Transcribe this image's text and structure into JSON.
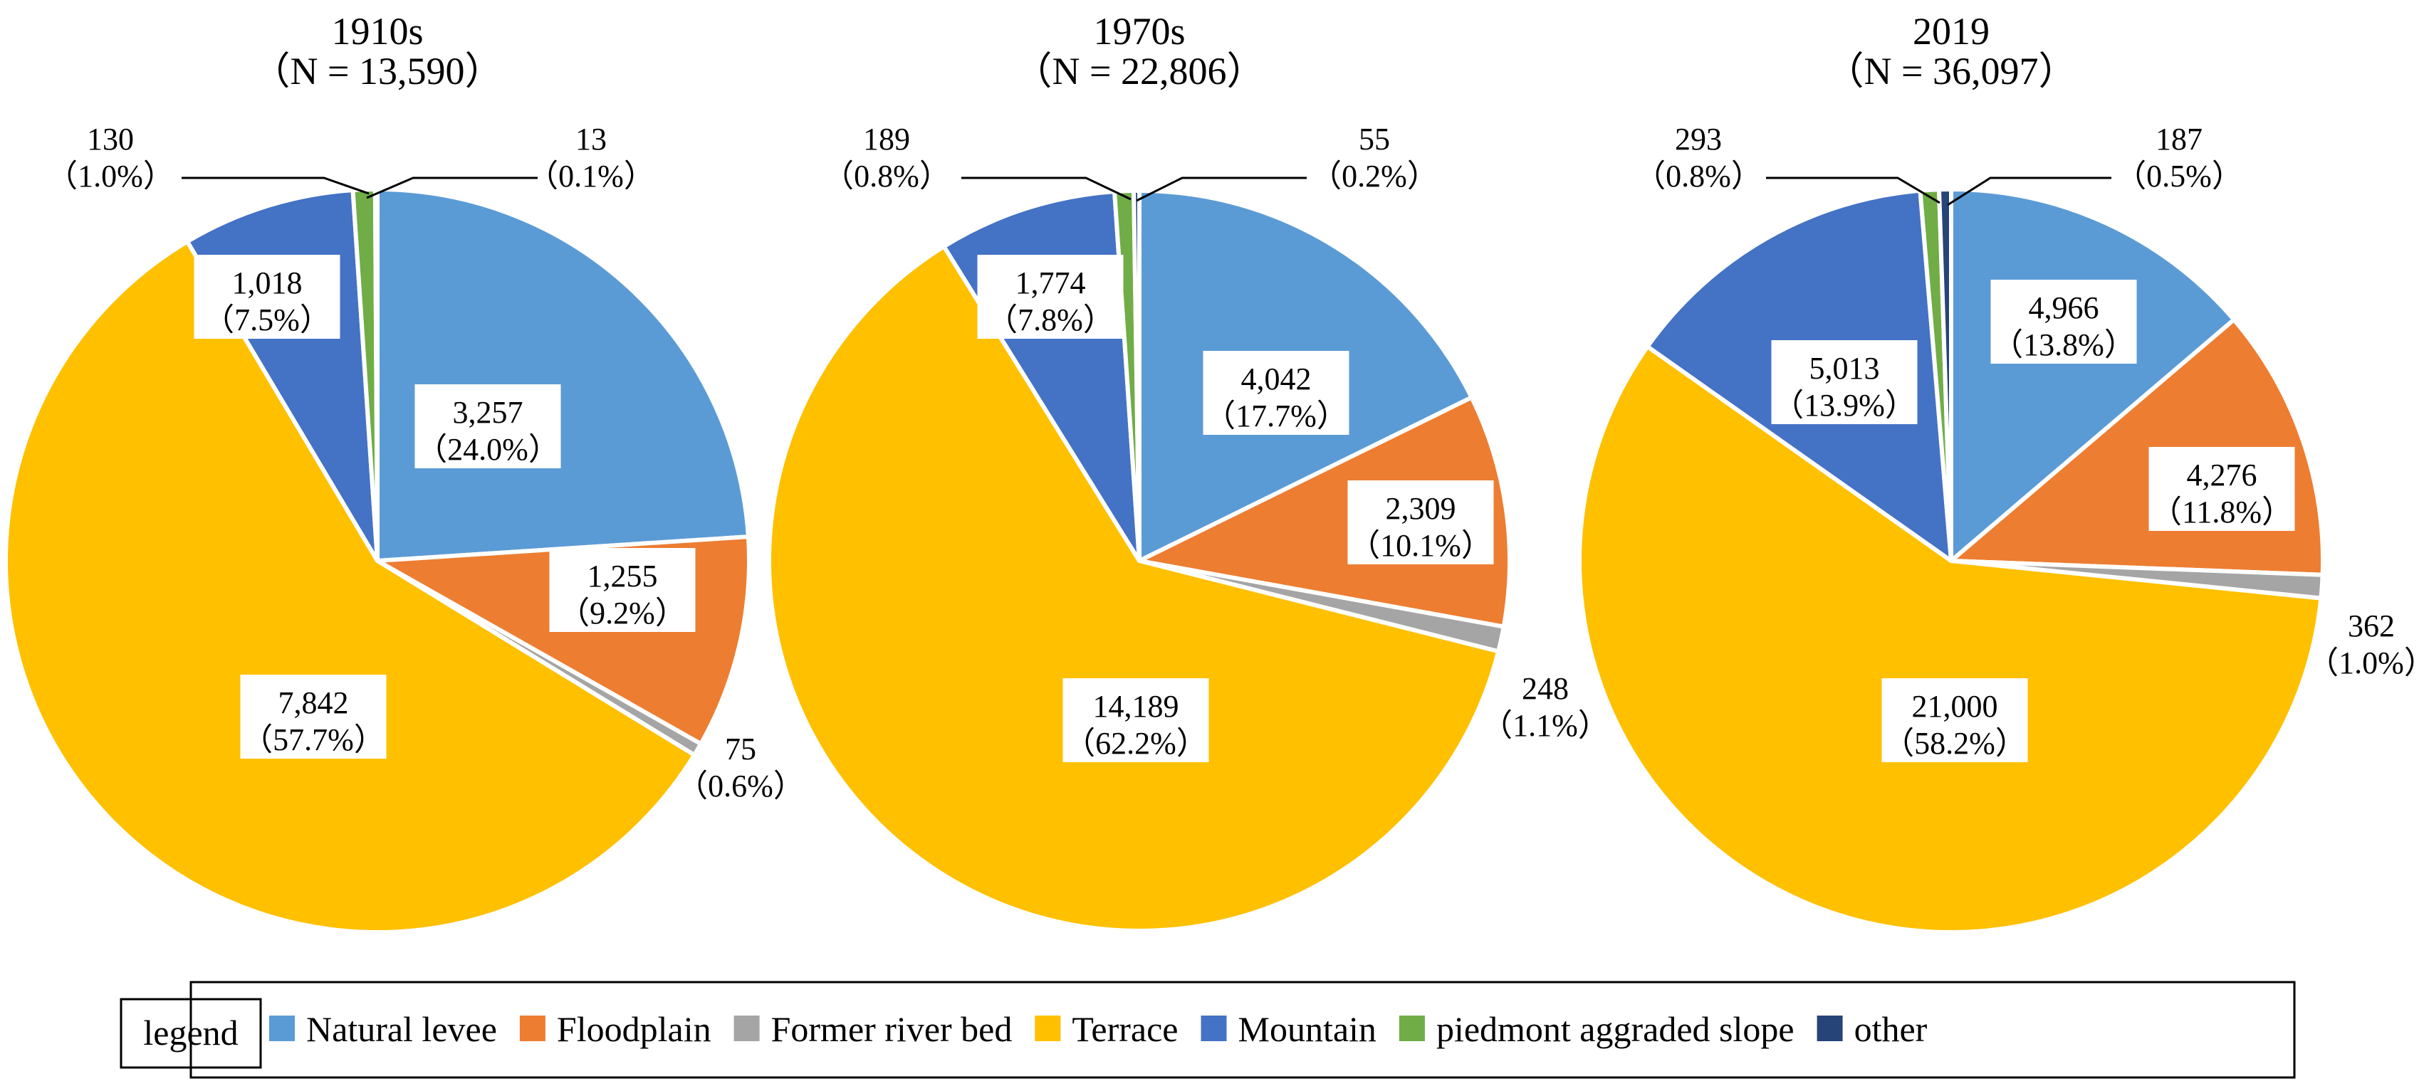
{
  "colors": {
    "natural_levee": "#5B9BD5",
    "floodplain": "#ED7D31",
    "former_river_bed": "#A5A5A5",
    "terrace": "#FFC000",
    "mountain": "#4472C4",
    "piedmont": "#70AD47",
    "other": "#264478"
  },
  "chart_data": [
    {
      "type": "pie",
      "title": "1910s",
      "subtitle": "（N = 13,590）",
      "slices": [
        {
          "category": "Natural levee",
          "value": 3257,
          "count": "3,257",
          "percent": "（24.0%）"
        },
        {
          "category": "Floodplain",
          "value": 1255,
          "count": "1,255",
          "percent": "（9.2%）"
        },
        {
          "category": "Former river bed",
          "value": 75,
          "count": "75",
          "percent": "（0.6%）"
        },
        {
          "category": "Terrace",
          "value": 7842,
          "count": "7,842",
          "percent": "（57.7%）"
        },
        {
          "category": "Mountain",
          "value": 1018,
          "count": "1,018",
          "percent": "（7.5%）"
        },
        {
          "category": "piedmont aggraded slope",
          "value": 130,
          "count": "130",
          "percent": "（1.0%）"
        },
        {
          "category": "other",
          "value": 13,
          "count": "13",
          "percent": "（0.1%）"
        }
      ]
    },
    {
      "type": "pie",
      "title": "1970s",
      "subtitle": "（N = 22,806）",
      "slices": [
        {
          "category": "Natural levee",
          "value": 4042,
          "count": "4,042",
          "percent": "（17.7%）"
        },
        {
          "category": "Floodplain",
          "value": 2309,
          "count": "2,309",
          "percent": "（10.1%）"
        },
        {
          "category": "Former river bed",
          "value": 248,
          "count": "248",
          "percent": "（1.1%）"
        },
        {
          "category": "Terrace",
          "value": 14189,
          "count": "14,189",
          "percent": "（62.2%）"
        },
        {
          "category": "Mountain",
          "value": 1774,
          "count": "1,774",
          "percent": "（7.8%）"
        },
        {
          "category": "piedmont aggraded slope",
          "value": 189,
          "count": "189",
          "percent": "（0.8%）"
        },
        {
          "category": "other",
          "value": 55,
          "count": "55",
          "percent": "（0.2%）"
        }
      ]
    },
    {
      "type": "pie",
      "title": "2019",
      "subtitle": "（N = 36,097）",
      "slices": [
        {
          "category": "Natural levee",
          "value": 4966,
          "count": "4,966",
          "percent": "（13.8%）"
        },
        {
          "category": "Floodplain",
          "value": 4276,
          "count": "4,276",
          "percent": "（11.8%）"
        },
        {
          "category": "Former river bed",
          "value": 362,
          "count": "362",
          "percent": "（1.0%）"
        },
        {
          "category": "Terrace",
          "value": 21000,
          "count": "21,000",
          "percent": "（58.2%）"
        },
        {
          "category": "Mountain",
          "value": 5013,
          "count": "5,013",
          "percent": "（13.9%）"
        },
        {
          "category": "piedmont aggraded slope",
          "value": 293,
          "count": "293",
          "percent": "（0.8%）"
        },
        {
          "category": "other",
          "value": 187,
          "count": "187",
          "percent": "（0.5%）"
        }
      ]
    }
  ],
  "legend": {
    "label": "legend",
    "items": [
      {
        "name": "Natural levee",
        "color_key": "natural_levee"
      },
      {
        "name": "Floodplain",
        "color_key": "floodplain"
      },
      {
        "name": "Former river bed",
        "color_key": "former_river_bed"
      },
      {
        "name": "Terrace",
        "color_key": "terrace"
      },
      {
        "name": "Mountain",
        "color_key": "mountain"
      },
      {
        "name": "piedmont aggraded slope",
        "color_key": "piedmont"
      },
      {
        "name": "other",
        "color_key": "other"
      }
    ]
  }
}
